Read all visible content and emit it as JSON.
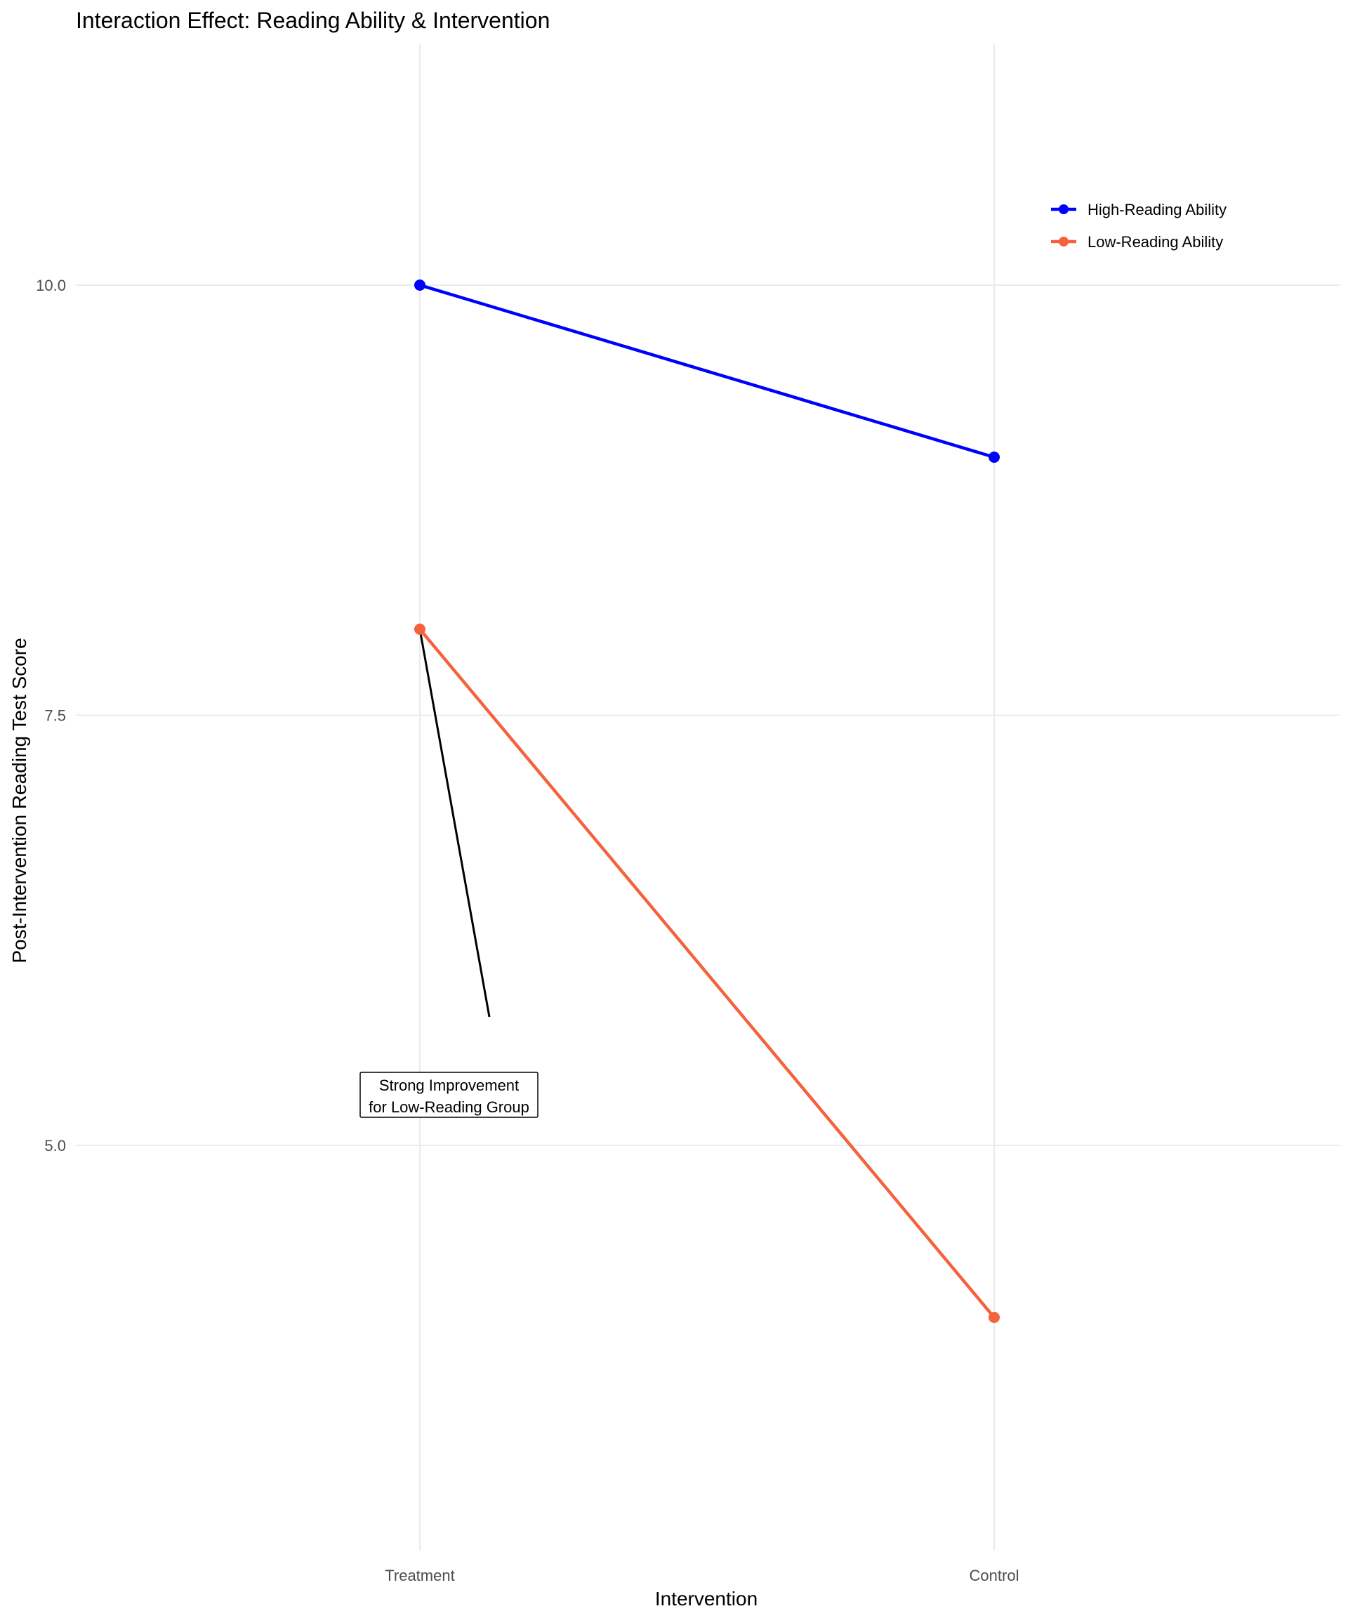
{
  "chart_data": {
    "type": "line",
    "title": "Interaction Effect: Reading Ability & Intervention",
    "xlabel": "Intervention",
    "ylabel": "Post-Intervention Reading Test Score",
    "categories": [
      "Treatment",
      "Control"
    ],
    "ylim": [
      2.5,
      11.5
    ],
    "y_ticks": [
      5.0,
      7.5,
      10.0
    ],
    "y_tick_labels": [
      "5.0",
      "7.5",
      "10.0"
    ],
    "grid": true,
    "legend_position": "top-right",
    "series": [
      {
        "name": "High-Reading Ability",
        "color": "#0000FF",
        "values": [
          10.0,
          9.0
        ]
      },
      {
        "name": "Low-Reading Ability",
        "color": "#F4623E",
        "values": [
          8.0,
          4.0
        ]
      }
    ],
    "annotation": {
      "lines": [
        "Strong Improvement",
        "for Low-Reading Group"
      ],
      "arrow_from": {
        "category": "Treatment",
        "value": 8.0
      },
      "color": "#000000"
    }
  }
}
